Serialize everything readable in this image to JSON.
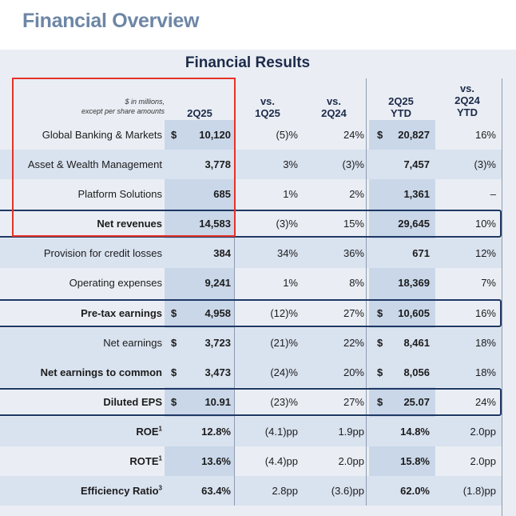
{
  "page": {
    "title": "Financial Overview"
  },
  "table": {
    "title": "Financial Results",
    "note_line1": "$ in millions,",
    "note_line2": "except per share amounts",
    "headers": [
      {
        "l1": "",
        "l2": "2Q25"
      },
      {
        "l1": "vs.",
        "l2": "1Q25"
      },
      {
        "l1": "vs.",
        "l2": "2Q24"
      },
      {
        "l1": "2Q25",
        "l2": "YTD"
      },
      {
        "l1": "vs.",
        "l2": "2Q24",
        "l3": "YTD"
      }
    ],
    "rows": [
      {
        "label": "Global Banking & Markets",
        "d1": "$",
        "c1": "10,120",
        "c2": "(5)%",
        "c3": "24%",
        "d4": "$",
        "c4": "20,827",
        "c5": "16%"
      },
      {
        "label": "Asset & Wealth Management",
        "d1": "",
        "c1": "3,778",
        "c2": "3%",
        "c3": "(3)%",
        "d4": "",
        "c4": "7,457",
        "c5": "(3)%"
      },
      {
        "label": "Platform Solutions",
        "d1": "",
        "c1": "685",
        "c2": "1%",
        "c3": "2%",
        "d4": "",
        "c4": "1,361",
        "c5": "–"
      },
      {
        "label": "Net revenues",
        "d1": "",
        "c1": "14,583",
        "c2": "(3)%",
        "c3": "15%",
        "d4": "",
        "c4": "29,645",
        "c5": "10%"
      },
      {
        "label": "Provision for credit losses",
        "d1": "",
        "c1": "384",
        "c2": "34%",
        "c3": "36%",
        "d4": "",
        "c4": "671",
        "c5": "12%"
      },
      {
        "label": "Operating expenses",
        "d1": "",
        "c1": "9,241",
        "c2": "1%",
        "c3": "8%",
        "d4": "",
        "c4": "18,369",
        "c5": "7%"
      },
      {
        "label": "Pre-tax earnings",
        "d1": "$",
        "c1": "4,958",
        "c2": "(12)%",
        "c3": "27%",
        "d4": "$",
        "c4": "10,605",
        "c5": "16%"
      },
      {
        "label": "Net earnings",
        "d1": "$",
        "c1": "3,723",
        "c2": "(21)%",
        "c3": "22%",
        "d4": "$",
        "c4": "8,461",
        "c5": "18%"
      },
      {
        "label": "Net earnings to common",
        "d1": "$",
        "c1": "3,473",
        "c2": "(24)%",
        "c3": "20%",
        "d4": "$",
        "c4": "8,056",
        "c5": "18%"
      },
      {
        "label": "Diluted EPS",
        "d1": "$",
        "c1": "10.91",
        "c2": "(23)%",
        "c3": "27%",
        "d4": "$",
        "c4": "25.07",
        "c5": "24%"
      },
      {
        "label": "ROE",
        "sup": "1",
        "d1": "",
        "c1": "12.8%",
        "c2": "(4.1)pp",
        "c3": "1.9pp",
        "d4": "",
        "c4": "14.8%",
        "c5": "2.0pp"
      },
      {
        "label": "ROTE",
        "sup": "1",
        "d1": "",
        "c1": "13.6%",
        "c2": "(4.4)pp",
        "c3": "2.0pp",
        "d4": "",
        "c4": "15.8%",
        "c5": "2.0pp"
      },
      {
        "label": "Efficiency Ratio",
        "sup": "3",
        "d1": "",
        "c1": "63.4%",
        "c2": "2.8pp",
        "c3": "(3.6)pp",
        "d4": "",
        "c4": "62.0%",
        "c5": "(1.8)pp"
      }
    ]
  }
}
